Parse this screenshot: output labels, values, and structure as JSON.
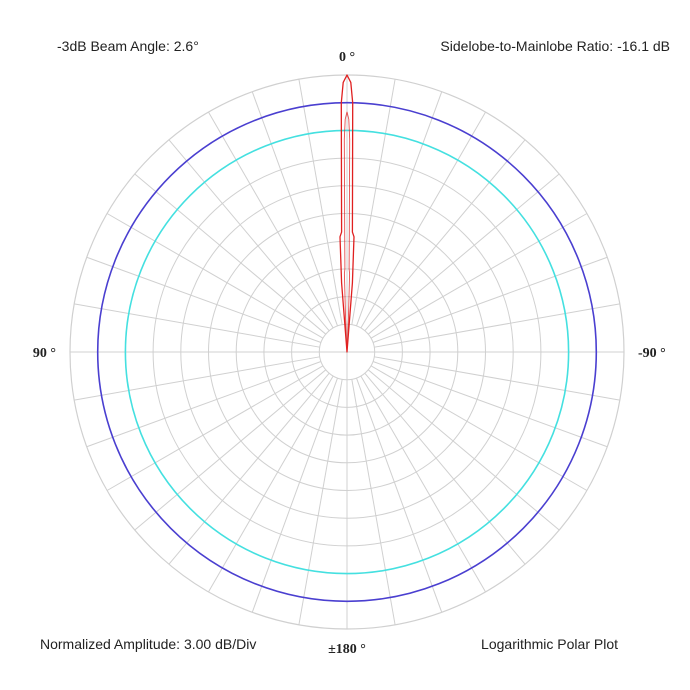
{
  "annotations": {
    "beam_angle": "-3dB Beam Angle: 2.6°",
    "sidelobe_ratio": "Sidelobe-to-Mainlobe Ratio: -16.1 dB",
    "amplitude_scale": "Normalized Amplitude: 3.00 dB/Div",
    "plot_type": "Logarithmic Polar Plot"
  },
  "chart_data": {
    "type": "polar-line",
    "scale": "logarithmic",
    "db_per_division": 3,
    "rings": 10,
    "radial_range_db": [
      -30,
      0
    ],
    "angular_grid_step_deg": 10,
    "angle_labels": [
      {
        "angle": 0,
        "text": "0 °"
      },
      {
        "angle": 90,
        "text": "90 °"
      },
      {
        "angle": -90,
        "text": "-90 °"
      },
      {
        "angle": 180,
        "text": "±180 °"
      }
    ],
    "reference_circles": [
      {
        "db": -3,
        "color": "#4a3fd0"
      },
      {
        "db": -6,
        "color": "#44e0e0"
      }
    ],
    "grid_color": "#d0d0d0",
    "series": [
      {
        "color": "#e02020",
        "angles_deg": [
          -6,
          -4.5,
          -3.5,
          -2.6,
          -2,
          -1.3,
          -0.8,
          0,
          0.8,
          1.3,
          2,
          2.6,
          3.5,
          4.5,
          6
        ],
        "values_db": [
          -30,
          -22.5,
          -17.5,
          -17,
          -13,
          -3,
          -0.8,
          0,
          -0.8,
          -3,
          -13,
          -17,
          -17.5,
          -22.5,
          -30
        ]
      }
    ]
  }
}
